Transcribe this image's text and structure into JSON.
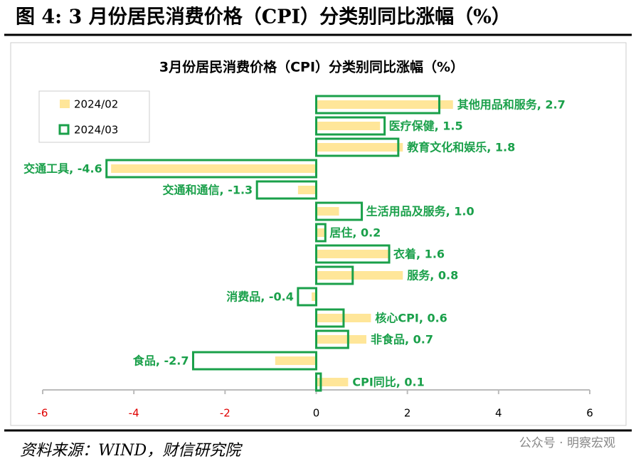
{
  "header": {
    "title": "图 4: 3 月份居民消费价格（CPI）分类别同比涨幅（%）"
  },
  "chart_data": {
    "type": "hbar",
    "title": "3月份居民消费价格（CPI）分类别同比涨幅（%）",
    "series": [
      {
        "name": "2024/02",
        "color": "#ffe699",
        "values": [
          3.0,
          1.4,
          1.9,
          -4.5,
          -0.4,
          0.5,
          0.2,
          1.6,
          1.9,
          -0.1,
          1.2,
          1.1,
          -0.9,
          0.7
        ]
      },
      {
        "name": "2024/03",
        "color": "#1aa04a",
        "values": [
          2.7,
          1.5,
          1.8,
          -4.6,
          -1.3,
          1.0,
          0.2,
          1.6,
          0.8,
          -0.4,
          0.6,
          0.7,
          -2.7,
          0.1
        ],
        "value_labels": [
          "其他用品和服务, 2.7",
          "医疗保健, 1.5",
          "教育文化和娱乐, 1.8",
          "交通工具, -4.6",
          "交通和通信, -1.3",
          "生活用品及服务, 1.0",
          "居住, 0.2",
          "衣着, 1.6",
          "服务, 0.8",
          "消费品, -0.4",
          "核心CPI, 0.6",
          "非食品, 0.7",
          "食品, -2.7",
          "CPI同比, 0.1"
        ]
      }
    ],
    "xlim": [
      -6,
      6
    ],
    "xticks": [
      -6,
      -4,
      -2,
      0,
      2,
      4,
      6
    ],
    "negative_tick_color": "#e00000",
    "legend": "upper left"
  },
  "footer": {
    "source": "资料来源：WIND，财信研究院",
    "watermark": "公众号 · 明察宏观"
  }
}
